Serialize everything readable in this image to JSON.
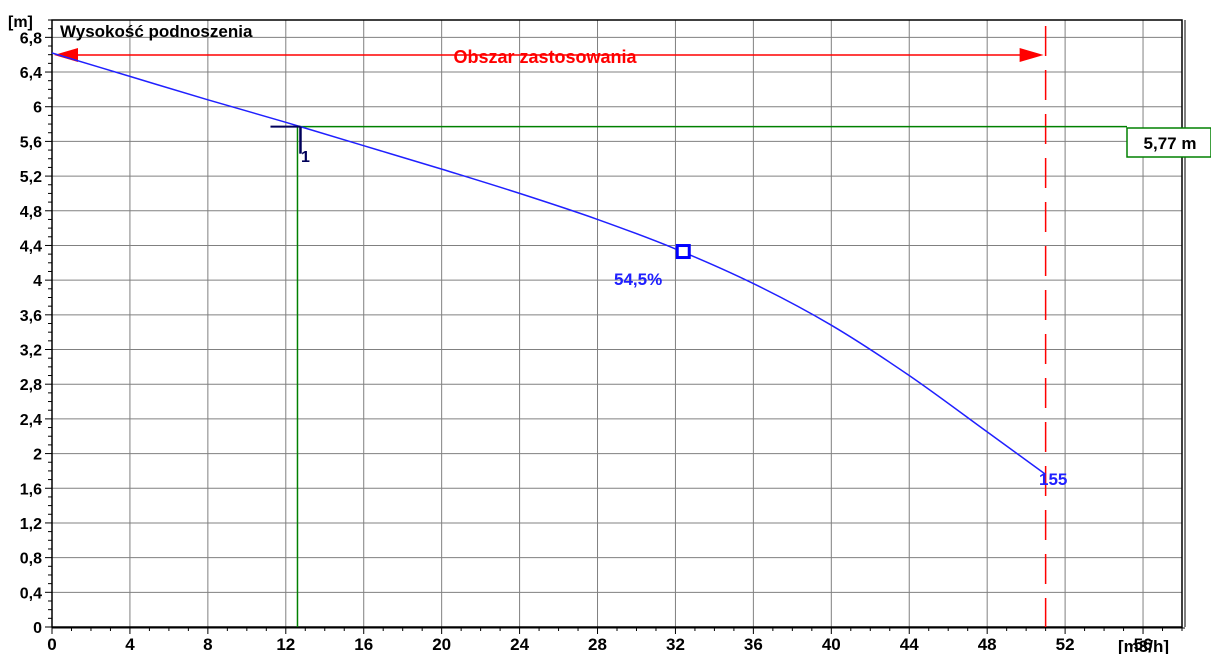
{
  "chart_data": {
    "type": "line",
    "title": "Wysokość podnoszenia",
    "ylabel": "[m]",
    "xlabel": "[m3/h]",
    "xlim": [
      0,
      58
    ],
    "ylim": [
      0,
      7.0
    ],
    "grid": true,
    "x_ticks": [
      0,
      4,
      8,
      12,
      16,
      20,
      24,
      28,
      32,
      36,
      40,
      44,
      48,
      52,
      56
    ],
    "x_tick_labels": [
      "0",
      "4",
      "8",
      "12",
      "16",
      "20",
      "24",
      "28",
      "32",
      "36",
      "40",
      "44",
      "48",
      "52",
      "56"
    ],
    "y_ticks": [
      0,
      0.4,
      0.8,
      1.2,
      1.6,
      2.0,
      2.4,
      2.8,
      3.2,
      3.6,
      4.0,
      4.4,
      4.8,
      5.2,
      5.6,
      6.0,
      6.4,
      6.8
    ],
    "y_tick_labels": [
      "0",
      "0,4",
      "0,8",
      "1,2",
      "1,6",
      "2",
      "2,4",
      "2,8",
      "3,2",
      "3,6",
      "4",
      "4,4",
      "4,8",
      "5,2",
      "5,6",
      "6",
      "6,4",
      "6,8"
    ],
    "series": [
      {
        "color": "#2020ff",
        "x": [
          0,
          4,
          8,
          12,
          16,
          20,
          24,
          28,
          32,
          36,
          40,
          44,
          48,
          51
        ],
        "y": [
          6.62,
          6.35,
          6.08,
          5.82,
          5.55,
          5.28,
          5.0,
          4.7,
          4.36,
          3.96,
          3.48,
          2.9,
          2.25,
          1.76
        ]
      }
    ],
    "application_range": {
      "label": "Obszar zastosowania",
      "x_end": 51,
      "color": "#ff0000"
    },
    "operating_point": {
      "x": 12.6,
      "y": 5.77,
      "label": "1",
      "head_label": "5,77 m",
      "color": "#008000"
    },
    "best_efficiency_point": {
      "x": 32.4,
      "y": 4.33,
      "label": "54,5%"
    },
    "curve_end_label": "155"
  }
}
